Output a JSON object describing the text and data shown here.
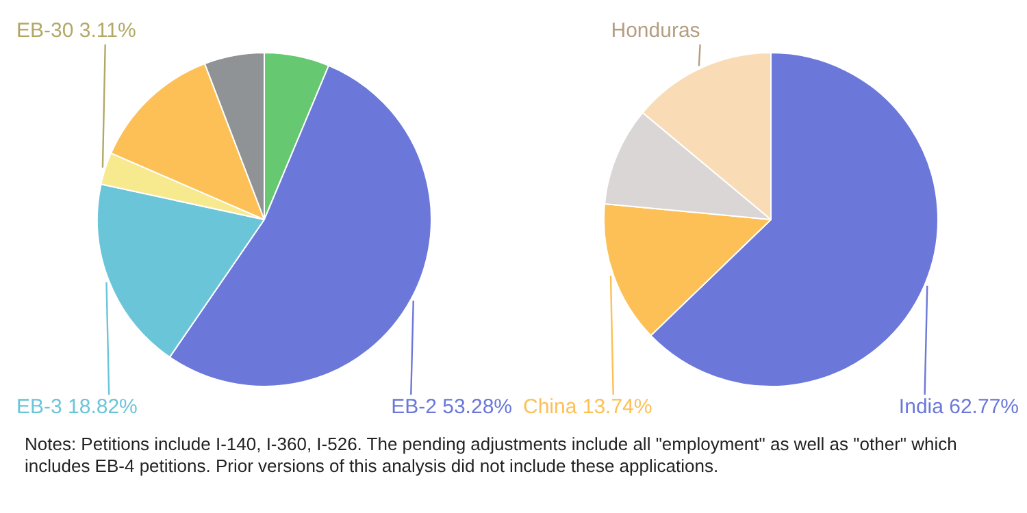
{
  "chart_data": [
    {
      "type": "pie",
      "categories": [
        null,
        "EB-2",
        "EB-3",
        "EB-30",
        null,
        null
      ],
      "values": [
        6.3,
        53.28,
        18.82,
        3.11,
        12.69,
        5.8
      ],
      "value_labels": [
        null,
        "53.28%",
        "18.82%",
        "3.11%",
        null,
        null
      ],
      "colors": [
        "#66c870",
        "#6b78d9",
        "#6bc5d9",
        "#f7e98e",
        "#fcc056",
        "#8f9396"
      ]
    },
    {
      "type": "pie",
      "categories": [
        "India",
        "China",
        null,
        "Honduras"
      ],
      "values": [
        62.77,
        13.74,
        9.56,
        13.93
      ],
      "value_labels": [
        "62.77%",
        "13.74%",
        null,
        null
      ],
      "colors": [
        "#6b78d9",
        "#fcc056",
        "#d9d6d5",
        "#f9dcb5"
      ],
      "annotations": [
        "Notes: Petitions include I-140, I-360, I-526. The pending adjustments include all \"employment\" as well as \"other\" which includes EB-4 petitions. Prior versions of this analysis did not include these applications."
      ]
    }
  ]
}
